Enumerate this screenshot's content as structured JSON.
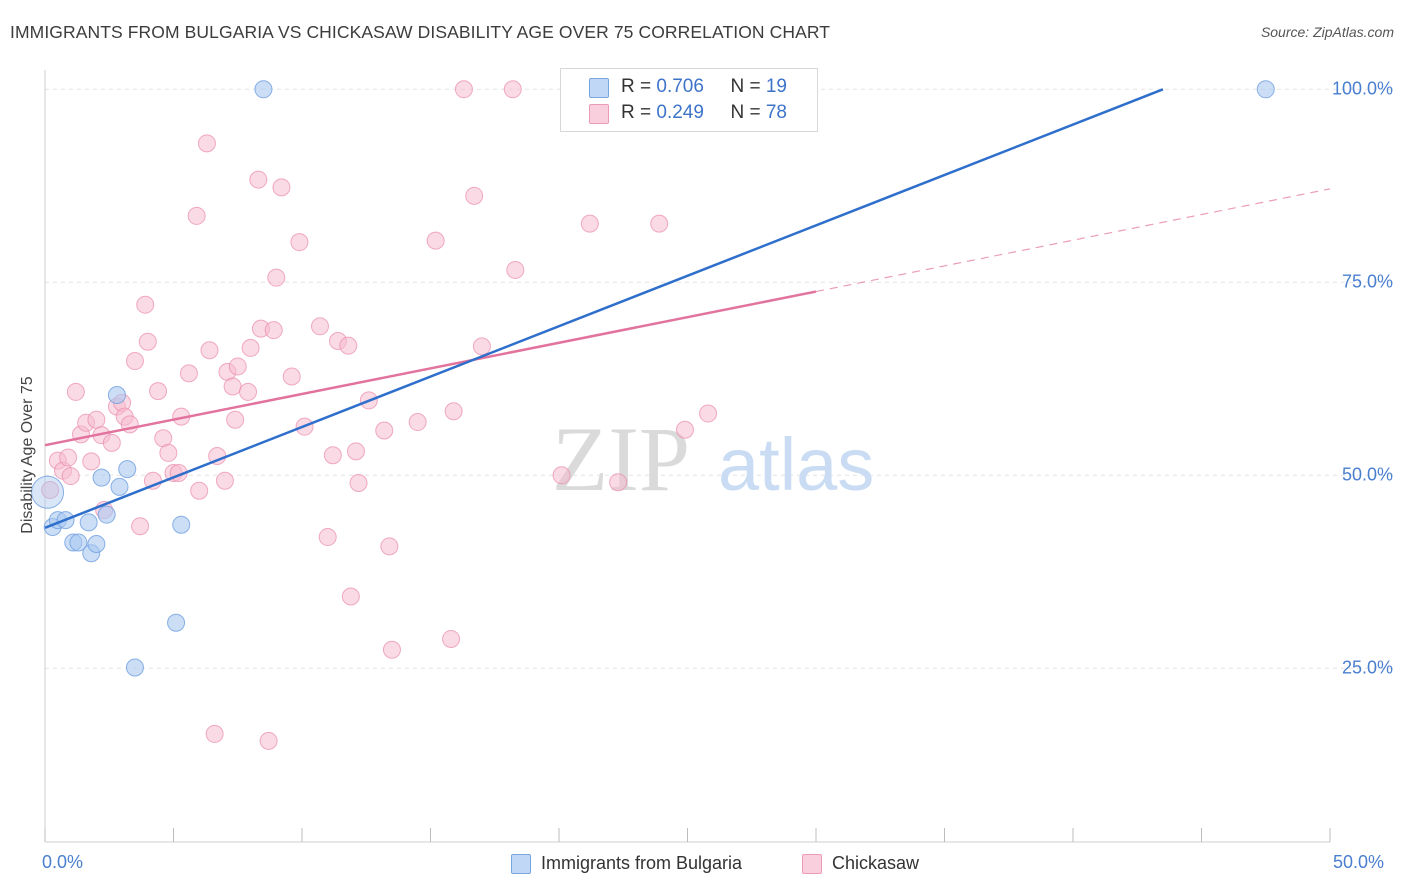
{
  "header": {
    "title": "IMMIGRANTS FROM BULGARIA VS CHICKASAW DISABILITY AGE OVER 75 CORRELATION CHART",
    "source": "Source: ZipAtlas.com"
  },
  "watermark": {
    "zip": "ZIP",
    "atlas": "atlas"
  },
  "legend_top": [
    {
      "r_label": "R = ",
      "r_value": "0.706",
      "n_label": "N = ",
      "n_value": "19"
    },
    {
      "r_label": "R = ",
      "r_value": "0.249",
      "n_label": "N = ",
      "n_value": "78"
    }
  ],
  "colors": {
    "blue_fill": "#a9c8f0",
    "blue_stroke": "#6f9fe0",
    "blue_line": "#2f6fcc",
    "pink_fill": "#f6bcd0",
    "pink_stroke": "#e98aab",
    "pink_line": "#e2739c",
    "grid": "#e3e3e3",
    "tick_text": "#4a7fd0"
  },
  "chart_data": {
    "type": "scatter",
    "title": "IMMIGRANTS FROM BULGARIA VS CHICKASAW DISABILITY AGE OVER 75 CORRELATION CHART",
    "xlabel": "",
    "ylabel": "Disability Age Over 75",
    "xlim": [
      0,
      50
    ],
    "ylim": [
      2.5,
      102.5
    ],
    "x_ticks": [
      "0.0%",
      "50.0%"
    ],
    "y_ticks": [
      "100.0%",
      "75.0%",
      "50.0%",
      "25.0%"
    ],
    "y_tick_values": [
      100,
      75,
      50,
      25
    ],
    "grid": "horizontal dashed",
    "legend_position": "top-center and bottom",
    "series": [
      {
        "name": "Immigrants from Bulgaria",
        "color": "#a9c8f0",
        "r": 0.706,
        "n": 19,
        "trend": {
          "x": [
            0,
            43.5
          ],
          "y": [
            43.2,
            100
          ]
        },
        "points": [
          [
            0.1,
            47.8
          ],
          [
            0.3,
            43.3
          ],
          [
            0.5,
            44.2
          ],
          [
            0.8,
            44.2
          ],
          [
            1.1,
            41.3
          ],
          [
            1.3,
            41.3
          ],
          [
            1.7,
            43.9
          ],
          [
            1.8,
            39.9
          ],
          [
            2.0,
            41.1
          ],
          [
            2.2,
            49.7
          ],
          [
            2.4,
            44.9
          ],
          [
            2.8,
            60.4
          ],
          [
            2.9,
            48.5
          ],
          [
            3.2,
            50.8
          ],
          [
            3.5,
            25.1
          ],
          [
            5.1,
            30.9
          ],
          [
            5.3,
            43.6
          ],
          [
            8.5,
            100
          ],
          [
            47.5,
            100
          ]
        ]
      },
      {
        "name": "Chickasaw",
        "color": "#f6bcd0",
        "r": 0.249,
        "n": 78,
        "trend": {
          "x": [
            0,
            30
          ],
          "y": [
            53.9,
            73.8
          ]
        },
        "trend_extrapolated": {
          "x": [
            30,
            50
          ],
          "y": [
            73.8,
            87.1
          ]
        },
        "points": [
          [
            0.2,
            48.1
          ],
          [
            0.5,
            51.9
          ],
          [
            0.7,
            50.6
          ],
          [
            0.9,
            52.3
          ],
          [
            1.0,
            49.9
          ],
          [
            1.2,
            60.8
          ],
          [
            1.4,
            55.3
          ],
          [
            1.6,
            56.8
          ],
          [
            1.8,
            51.8
          ],
          [
            2.0,
            57.2
          ],
          [
            2.2,
            55.2
          ],
          [
            2.3,
            45.5
          ],
          [
            2.6,
            54.2
          ],
          [
            2.8,
            58.9
          ],
          [
            3.0,
            59.4
          ],
          [
            3.1,
            57.6
          ],
          [
            3.3,
            56.6
          ],
          [
            3.5,
            64.8
          ],
          [
            3.7,
            43.4
          ],
          [
            3.9,
            72.1
          ],
          [
            4.0,
            67.3
          ],
          [
            4.2,
            49.3
          ],
          [
            4.4,
            60.9
          ],
          [
            4.6,
            54.8
          ],
          [
            4.8,
            52.9
          ],
          [
            5.0,
            50.3
          ],
          [
            5.2,
            50.3
          ],
          [
            5.3,
            57.6
          ],
          [
            5.6,
            63.2
          ],
          [
            5.9,
            83.6
          ],
          [
            6.0,
            48.0
          ],
          [
            6.3,
            93.0
          ],
          [
            6.4,
            66.2
          ],
          [
            6.6,
            16.5
          ],
          [
            6.7,
            52.5
          ],
          [
            7.0,
            49.3
          ],
          [
            7.1,
            63.4
          ],
          [
            7.3,
            61.5
          ],
          [
            7.4,
            57.2
          ],
          [
            7.5,
            64.1
          ],
          [
            7.9,
            60.8
          ],
          [
            8.0,
            66.5
          ],
          [
            8.3,
            88.3
          ],
          [
            8.4,
            69.0
          ],
          [
            8.7,
            15.6
          ],
          [
            8.9,
            68.8
          ],
          [
            9.0,
            75.6
          ],
          [
            9.2,
            87.3
          ],
          [
            9.6,
            62.8
          ],
          [
            9.9,
            80.2
          ],
          [
            10.1,
            56.3
          ],
          [
            10.7,
            69.3
          ],
          [
            11.0,
            42.0
          ],
          [
            11.2,
            52.6
          ],
          [
            11.4,
            67.4
          ],
          [
            11.8,
            66.8
          ],
          [
            11.9,
            34.3
          ],
          [
            12.1,
            53.1
          ],
          [
            12.2,
            49.0
          ],
          [
            12.6,
            59.7
          ],
          [
            13.2,
            55.8
          ],
          [
            13.4,
            40.8
          ],
          [
            13.5,
            27.4
          ],
          [
            14.5,
            56.9
          ],
          [
            15.2,
            80.4
          ],
          [
            15.8,
            28.8
          ],
          [
            15.9,
            58.3
          ],
          [
            16.3,
            100
          ],
          [
            16.7,
            86.2
          ],
          [
            17.0,
            66.7
          ],
          [
            18.2,
            100
          ],
          [
            18.3,
            76.6
          ],
          [
            20.1,
            50.0
          ],
          [
            21.2,
            82.6
          ],
          [
            22.3,
            49.1
          ],
          [
            23.9,
            82.6
          ],
          [
            24.9,
            55.9
          ],
          [
            25.8,
            58.0
          ]
        ]
      }
    ]
  },
  "legend_bottom": [
    {
      "label": "Immigrants from Bulgaria"
    },
    {
      "label": "Chickasaw"
    }
  ]
}
